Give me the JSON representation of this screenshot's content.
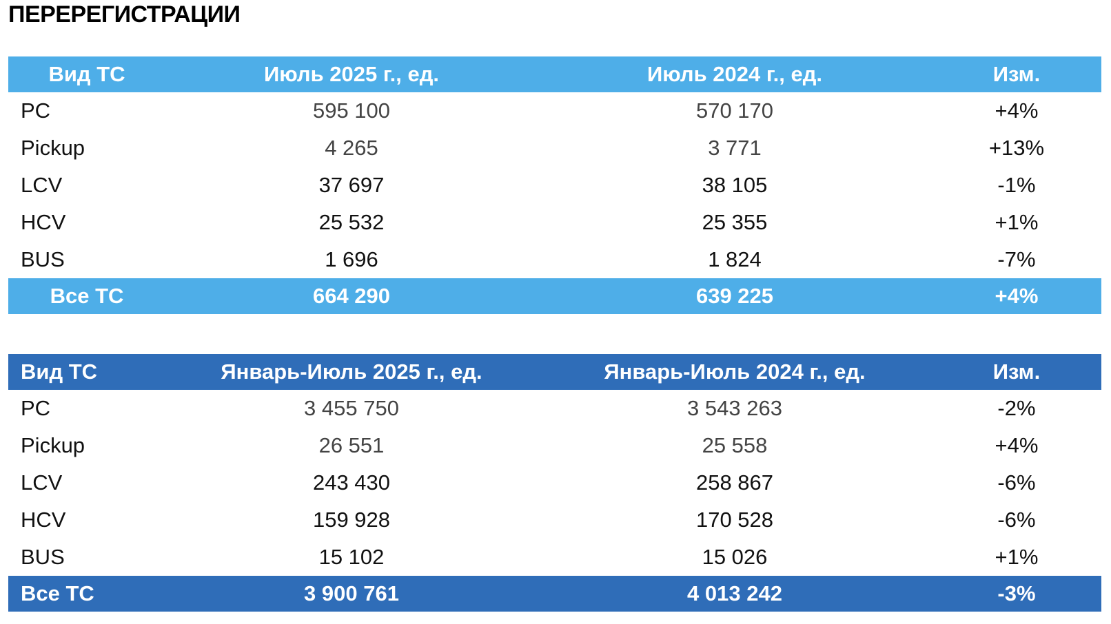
{
  "title": "ПЕРЕРЕГИСТРАЦИИ",
  "tables": [
    {
      "header": [
        "Вид ТС",
        "Июль 2025 г., ед.",
        "Июль 2024 г., ед.",
        "Изм."
      ],
      "rows": [
        [
          "PC",
          "595 100",
          "570 170",
          "+4%"
        ],
        [
          "Pickup",
          "4 265",
          "3 771",
          "+13%"
        ],
        [
          "LCV",
          "37 697",
          "38 105",
          "-1%"
        ],
        [
          "HCV",
          "25 532",
          "25 355",
          "+1%"
        ],
        [
          "BUS",
          "1 696",
          "1 824",
          "-7%"
        ]
      ],
      "total": [
        "Все ТС",
        "664 290",
        "639 225",
        "+4%"
      ]
    },
    {
      "header": [
        "Вид ТС",
        "Январь-Июль 2025 г., ед.",
        "Январь-Июль 2024 г., ед.",
        "Изм."
      ],
      "rows": [
        [
          "PC",
          "3 455 750",
          "3 543 263",
          "-2%"
        ],
        [
          "Pickup",
          "26 551",
          "25 558",
          "+4%"
        ],
        [
          "LCV",
          "243 430",
          "258 867",
          "-6%"
        ],
        [
          "HCV",
          "159 928",
          "170 528",
          "-6%"
        ],
        [
          "BUS",
          "15 102",
          "15 026",
          "+1%"
        ]
      ],
      "total": [
        "Все ТС",
        "3 900 761",
        "4 013 242",
        "-3%"
      ]
    }
  ]
}
